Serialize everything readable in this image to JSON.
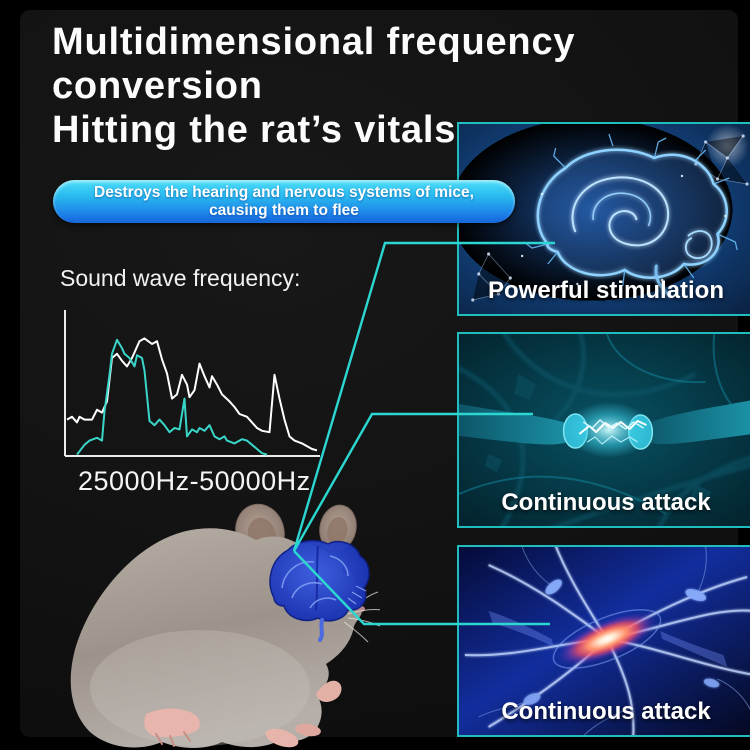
{
  "title": {
    "line1": "Multidimensional frequency conversion",
    "line2": "Hitting the rat’s vitals"
  },
  "banner": {
    "text_line1": "Destroys the hearing and nervous systems of mice,",
    "text_line2": "causing them to flee"
  },
  "frequency_section": {
    "label": "Sound wave frequency:",
    "range": "25000Hz-50000Hz"
  },
  "panels": [
    {
      "caption": "Powerful stimulation",
      "image": "glowing-blue-brain"
    },
    {
      "caption": "Continuous attack",
      "image": "synapse-electric-spark"
    },
    {
      "caption": "Continuous attack",
      "image": "neuron-red-core"
    }
  ],
  "colors": {
    "accent_teal": "#2bd7d0",
    "panel_border": "#1fbdbd",
    "banner_top": "#4fdffa",
    "banner_bottom": "#1a79e6",
    "chart_white": "#ffffff",
    "chart_cyan": "#38d6c8",
    "brain_blue": "#1e3fd0"
  },
  "chart_data": {
    "type": "line",
    "title": "Sound wave frequency",
    "x_range_label": "25000Hz-50000Hz",
    "x_min_hz": 25000,
    "x_max_hz": 50000,
    "grid": false,
    "legend": false,
    "y_axis_ticks": [],
    "x_axis_ticks": [],
    "series": [
      {
        "name": "spectrum-white",
        "color": "#ffffff",
        "stroke_width": 2,
        "points": [
          [
            0.0,
            0.26
          ],
          [
            0.02,
            0.28
          ],
          [
            0.04,
            0.24
          ],
          [
            0.05,
            0.28
          ],
          [
            0.07,
            0.26
          ],
          [
            0.1,
            0.26
          ],
          [
            0.12,
            0.33
          ],
          [
            0.14,
            0.31
          ],
          [
            0.16,
            0.39
          ],
          [
            0.18,
            0.7
          ],
          [
            0.2,
            0.73
          ],
          [
            0.22,
            0.68
          ],
          [
            0.24,
            0.64
          ],
          [
            0.26,
            0.7
          ],
          [
            0.29,
            0.82
          ],
          [
            0.31,
            0.84
          ],
          [
            0.34,
            0.8
          ],
          [
            0.36,
            0.82
          ],
          [
            0.38,
            0.69
          ],
          [
            0.4,
            0.59
          ],
          [
            0.42,
            0.41
          ],
          [
            0.44,
            0.44
          ],
          [
            0.46,
            0.58
          ],
          [
            0.48,
            0.51
          ],
          [
            0.49,
            0.42
          ],
          [
            0.51,
            0.47
          ],
          [
            0.53,
            0.66
          ],
          [
            0.55,
            0.57
          ],
          [
            0.57,
            0.49
          ],
          [
            0.58,
            0.57
          ],
          [
            0.6,
            0.51
          ],
          [
            0.62,
            0.44
          ],
          [
            0.65,
            0.39
          ],
          [
            0.67,
            0.35
          ],
          [
            0.69,
            0.3
          ],
          [
            0.72,
            0.28
          ],
          [
            0.74,
            0.24
          ],
          [
            0.76,
            0.2
          ],
          [
            0.78,
            0.18
          ],
          [
            0.81,
            0.17
          ],
          [
            0.83,
            0.58
          ],
          [
            0.85,
            0.41
          ],
          [
            0.87,
            0.26
          ],
          [
            0.89,
            0.14
          ],
          [
            0.91,
            0.11
          ],
          [
            0.94,
            0.09
          ],
          [
            0.98,
            0.05
          ],
          [
            1.0,
            0.04
          ]
        ]
      },
      {
        "name": "spectrum-cyan",
        "color": "#38d6c8",
        "stroke_width": 2,
        "points": [
          [
            0.04,
            0.01
          ],
          [
            0.07,
            0.08
          ],
          [
            0.09,
            0.11
          ],
          [
            0.12,
            0.13
          ],
          [
            0.14,
            0.11
          ],
          [
            0.15,
            0.32
          ],
          [
            0.17,
            0.58
          ],
          [
            0.18,
            0.73
          ],
          [
            0.2,
            0.83
          ],
          [
            0.22,
            0.77
          ],
          [
            0.23,
            0.73
          ],
          [
            0.25,
            0.7
          ],
          [
            0.27,
            0.64
          ],
          [
            0.28,
            0.72
          ],
          [
            0.3,
            0.7
          ],
          [
            0.31,
            0.61
          ],
          [
            0.33,
            0.25
          ],
          [
            0.35,
            0.22
          ],
          [
            0.37,
            0.26
          ],
          [
            0.39,
            0.22
          ],
          [
            0.41,
            0.17
          ],
          [
            0.43,
            0.2
          ],
          [
            0.45,
            0.19
          ],
          [
            0.47,
            0.41
          ],
          [
            0.48,
            0.14
          ],
          [
            0.5,
            0.19
          ],
          [
            0.52,
            0.17
          ],
          [
            0.53,
            0.2
          ],
          [
            0.55,
            0.18
          ],
          [
            0.57,
            0.22
          ],
          [
            0.59,
            0.14
          ],
          [
            0.61,
            0.12
          ],
          [
            0.63,
            0.14
          ],
          [
            0.64,
            0.11
          ],
          [
            0.67,
            0.09
          ],
          [
            0.7,
            0.12
          ],
          [
            0.72,
            0.11
          ],
          [
            0.74,
            0.08
          ],
          [
            0.76,
            0.05
          ],
          [
            0.78,
            0.02
          ],
          [
            0.8,
            0.01
          ]
        ]
      }
    ]
  }
}
